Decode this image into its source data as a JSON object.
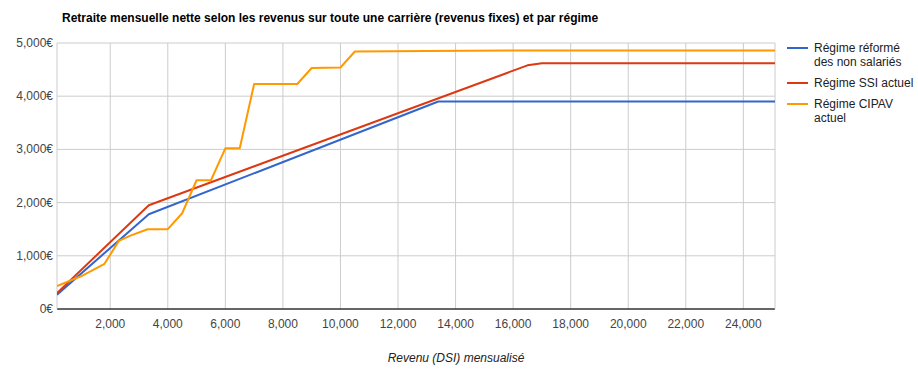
{
  "chart_data": {
    "type": "line",
    "title": "Retraite mensuelle nette selon les revenus sur toute une carrière (revenus fixes) et par régime",
    "x_label": "Revenu (DSI) mensualisé",
    "xlim": [
      150,
      25100
    ],
    "ylim": [
      0,
      5000
    ],
    "xticks": [
      {
        "value": 2000,
        "label": "2,000"
      },
      {
        "value": 4000,
        "label": "4,000"
      },
      {
        "value": 6000,
        "label": "6,000"
      },
      {
        "value": 8000,
        "label": "8,000"
      },
      {
        "value": 10000,
        "label": "10,000"
      },
      {
        "value": 12000,
        "label": "12,000"
      },
      {
        "value": 14000,
        "label": "14,000"
      },
      {
        "value": 16000,
        "label": "16,000"
      },
      {
        "value": 18000,
        "label": "18,000"
      },
      {
        "value": 20000,
        "label": "20,000"
      },
      {
        "value": 22000,
        "label": "22,000"
      },
      {
        "value": 24000,
        "label": "24,000"
      }
    ],
    "yticks": [
      {
        "value": 0,
        "label": "0€"
      },
      {
        "value": 1000,
        "label": "1,000€"
      },
      {
        "value": 2000,
        "label": "2,000€"
      },
      {
        "value": 3000,
        "label": "3,000€"
      },
      {
        "value": 4000,
        "label": "4,000€"
      },
      {
        "value": 5000,
        "label": "5,000€"
      }
    ],
    "grid": true,
    "legend": "right",
    "series": [
      {
        "name": "Régime réformé des non salariés",
        "color": "#3366cc",
        "x": [
          150,
          3340,
          13400,
          25100
        ],
        "values": [
          270,
          1780,
          3900,
          3900
        ]
      },
      {
        "name": "Régime SSI actuel",
        "color": "#dc3912",
        "x": [
          150,
          3340,
          16500,
          17000,
          25100
        ],
        "values": [
          300,
          1950,
          4580,
          4620,
          4620
        ]
      },
      {
        "name": "Régime CIPAV actuel",
        "color": "#ff9900",
        "x": [
          150,
          1000,
          1800,
          2300,
          2700,
          3300,
          4000,
          4500,
          5000,
          5500,
          6000,
          6500,
          7000,
          8500,
          9000,
          10000,
          10500,
          13000,
          16000,
          25100
        ],
        "values": [
          430,
          620,
          850,
          1280,
          1380,
          1500,
          1500,
          1800,
          2420,
          2420,
          3020,
          3020,
          4230,
          4230,
          4530,
          4540,
          4840,
          4850,
          4860,
          4860
        ]
      }
    ]
  }
}
